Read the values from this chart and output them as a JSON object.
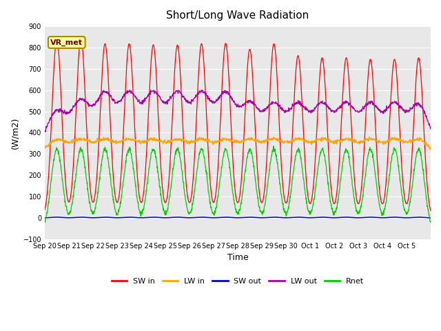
{
  "title": "Short/Long Wave Radiation",
  "xlabel": "Time",
  "ylabel": "(W/m2)",
  "ylim": [
    -100,
    900
  ],
  "yticks": [
    -100,
    0,
    100,
    200,
    300,
    400,
    500,
    600,
    700,
    800,
    900
  ],
  "x_tick_labels": [
    "Sep 20",
    "Sep 21",
    "Sep 22",
    "Sep 23",
    "Sep 24",
    "Sep 25",
    "Sep 26",
    "Sep 27",
    "Sep 28",
    "Sep 29",
    "Sep 30",
    "Oct 1",
    "Oct 2",
    "Oct 3",
    "Oct 4",
    "Oct 5"
  ],
  "n_days": 16,
  "annotation": "VR_met",
  "bg_color": "#e8e8e8",
  "sw_in_peaks": [
    840,
    845,
    818,
    818,
    813,
    812,
    818,
    820,
    792,
    818,
    762,
    752,
    752,
    745,
    745,
    752
  ],
  "lw_out_day_add": [
    160,
    205,
    240,
    240,
    240,
    240,
    240,
    240,
    195,
    190,
    190,
    190,
    190,
    190,
    190,
    190
  ],
  "colors": {
    "SW_in": "#ff0000",
    "LW_in": "#ffa500",
    "SW_out": "#0000cc",
    "LW_out": "#aa00aa",
    "Rnet": "#00cc00"
  },
  "legend_labels": [
    "SW in",
    "LW in",
    "SW out",
    "LW out",
    "Rnet"
  ]
}
